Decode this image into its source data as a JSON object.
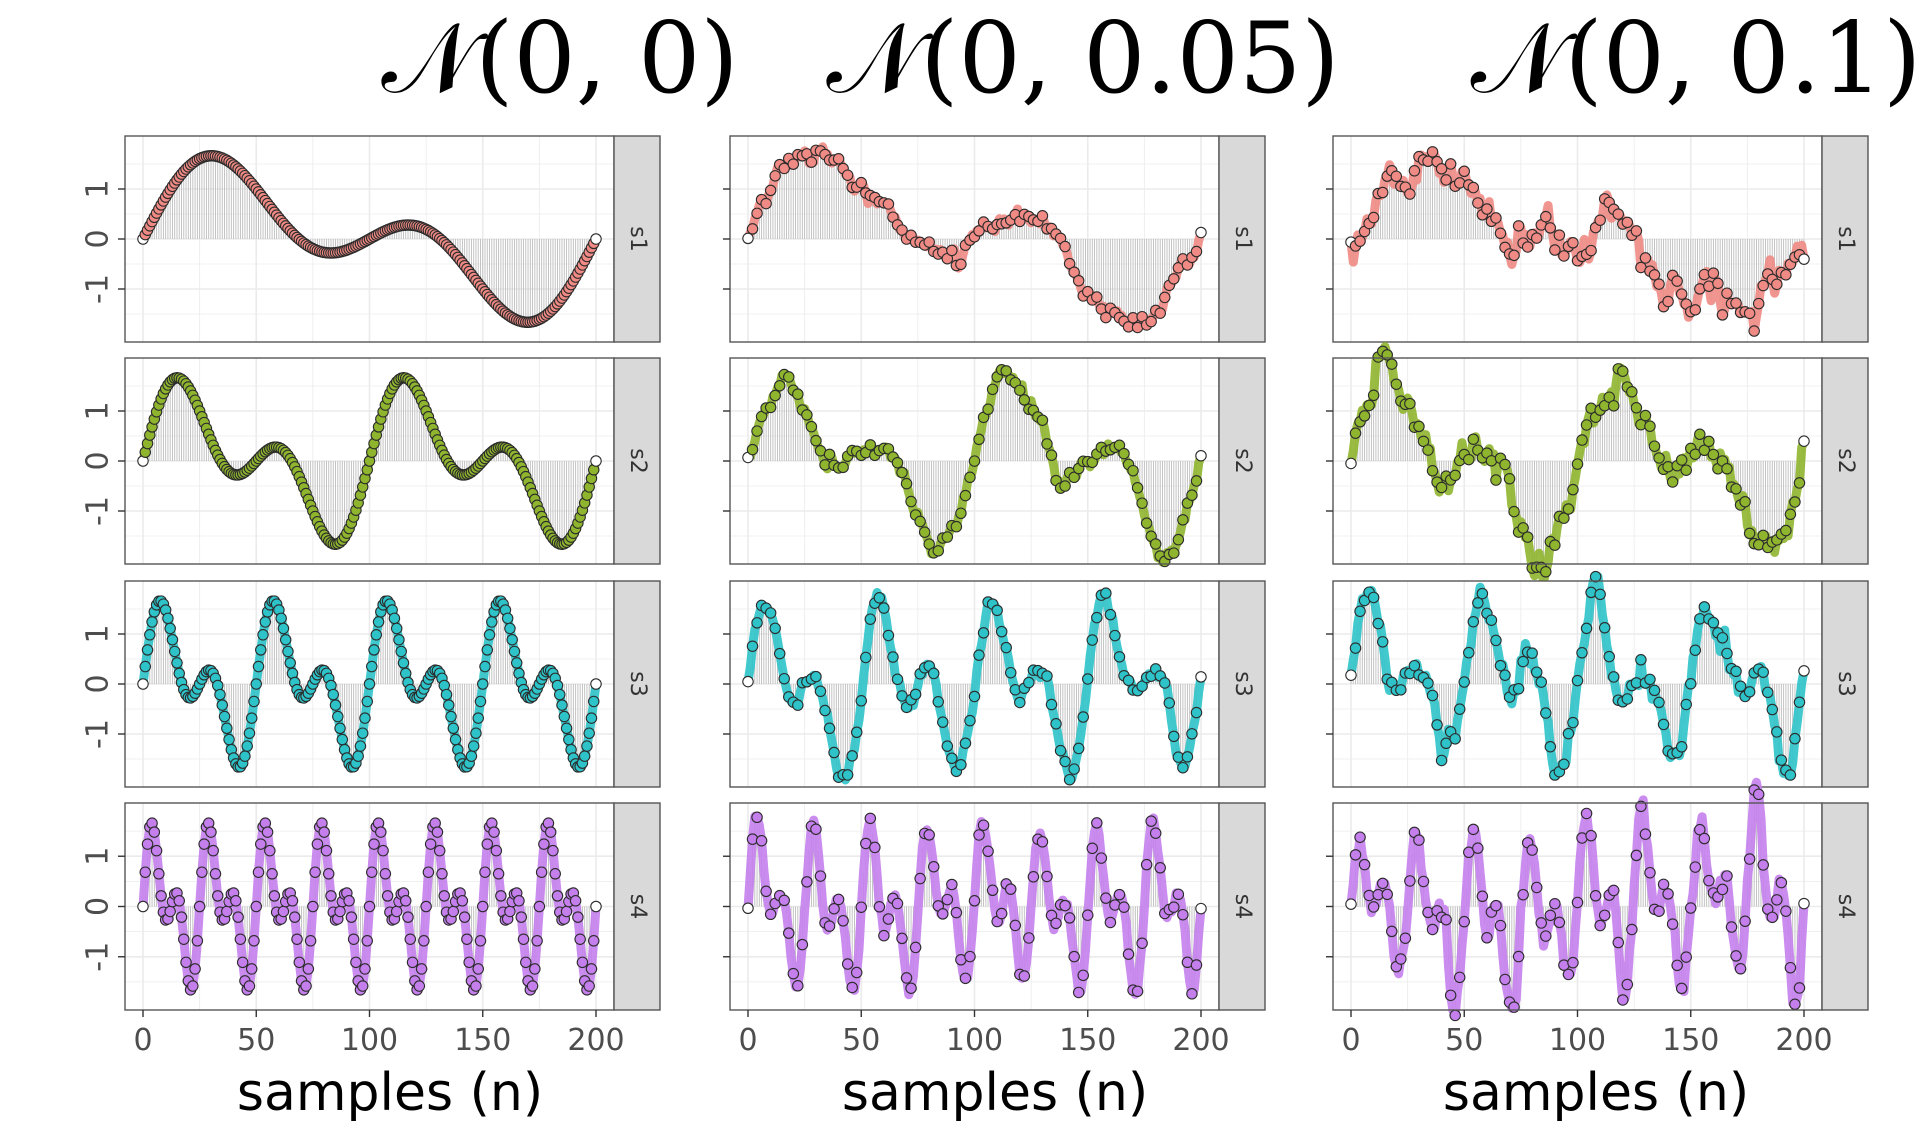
{
  "figure": {
    "column_titles": [
      "𝒩(0, 0)",
      "𝒩(0, 0.05)",
      "𝒩(0, 0.1)"
    ],
    "x_axis_label": "samples (n)",
    "facet_labels": [
      "s1",
      "s2",
      "s3",
      "s4"
    ],
    "x_tick_labels": [
      "0",
      "50",
      "100",
      "150",
      "200"
    ],
    "y_tick_labels": [
      "-1",
      "0",
      "1"
    ],
    "colors": {
      "s1": "#F08A84",
      "s2": "#8FB52E",
      "s3": "#2EC3C9",
      "s4": "#C47FEC",
      "strip_bg": "#D9D9D9",
      "panel_border": "#555555",
      "grid": "#EBEBEB",
      "stem": "#BDBDBD"
    }
  },
  "chart_data": [
    {
      "type": "line",
      "title": "𝒩(0, 0)",
      "noise": {
        "mean": 0,
        "sd": 0
      },
      "xlabel": "samples (n)",
      "xlim": [
        0,
        200
      ],
      "ylim": [
        -1.9,
        1.9
      ],
      "n_samples": 201,
      "series": [
        {
          "name": "s1",
          "formula": "sin(2*pi*n/200*1) + 0.9*sin(2*pi*n/200*2)"
        },
        {
          "name": "s2",
          "formula": "sin(2*pi*n/100*1) + 0.9*sin(2*pi*n/100*2)"
        },
        {
          "name": "s3",
          "formula": "sin(2*pi*n/50*1) + 0.9*sin(2*pi*n/50*2)"
        },
        {
          "name": "s4",
          "formula": "sin(2*pi*n/25*1) + 0.9*sin(2*pi*n/25*2)"
        }
      ],
      "y_range_shown": [
        -1.65,
        1.76
      ],
      "grid": true,
      "legend": "none"
    },
    {
      "type": "line",
      "title": "𝒩(0, 0.05)",
      "noise": {
        "mean": 0,
        "sd": 0.05
      },
      "xlabel": "samples (n)",
      "xlim": [
        0,
        200
      ],
      "ylim": [
        -1.9,
        1.9
      ],
      "n_samples": 201,
      "series": [
        {
          "name": "s1",
          "formula": "s1 + N(0,0.05) (accumulated)"
        },
        {
          "name": "s2",
          "formula": "s2 + N(0,0.05) (accumulated)"
        },
        {
          "name": "s3",
          "formula": "s3 + N(0,0.05) (accumulated)"
        },
        {
          "name": "s4",
          "formula": "s4 + N(0,0.05) (accumulated)"
        }
      ],
      "grid": true,
      "legend": "none"
    },
    {
      "type": "line",
      "title": "𝒩(0, 0.1)",
      "noise": {
        "mean": 0,
        "sd": 0.1
      },
      "xlabel": "samples (n)",
      "xlim": [
        0,
        200
      ],
      "ylim": [
        -1.9,
        1.9
      ],
      "n_samples": 201,
      "series": [
        {
          "name": "s1",
          "formula": "s1 + N(0,0.1) (accumulated)"
        },
        {
          "name": "s2",
          "formula": "s2 + N(0,0.1) (accumulated)"
        },
        {
          "name": "s3",
          "formula": "s3 + N(0,0.1) (accumulated)"
        },
        {
          "name": "s4",
          "formula": "s4 + N(0,0.1) (accumulated)"
        }
      ],
      "grid": true,
      "legend": "none"
    }
  ]
}
